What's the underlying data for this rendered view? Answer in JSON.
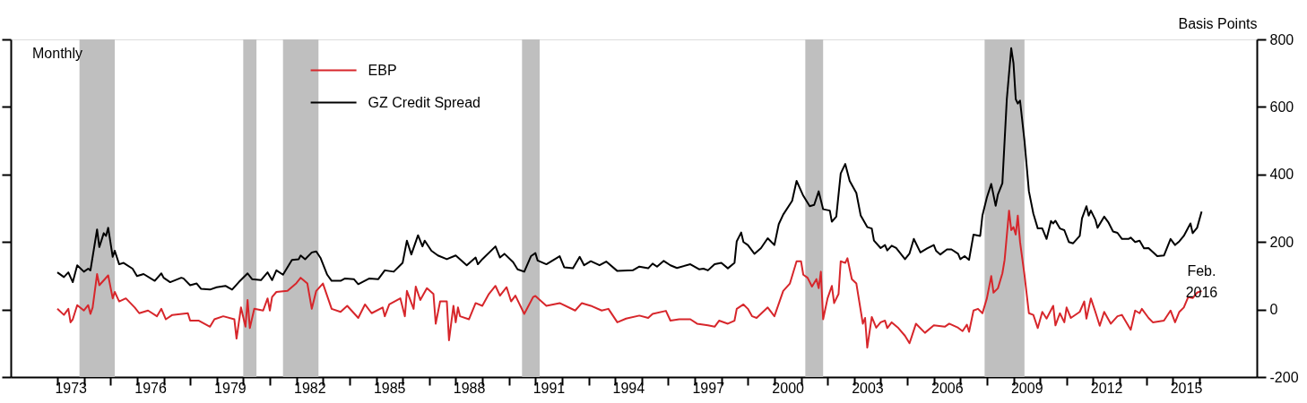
{
  "chart_data": {
    "type": "line",
    "ylabel": "Basis Points",
    "ylim": [
      -200,
      800
    ],
    "yticks": [
      -200,
      0,
      200,
      400,
      600,
      800
    ],
    "xlim": [
      "1971-04",
      "2018-03"
    ],
    "xticks": [
      {
        "value": "1973",
        "label": null
      },
      {
        "value": "1974",
        "label": null
      },
      {
        "value": "1975",
        "label": null
      },
      {
        "value": "1976",
        "label": null
      },
      {
        "value": "1977",
        "label": null
      },
      {
        "value": "1978",
        "label": null
      },
      {
        "value": "1979",
        "label": null
      },
      {
        "value": "1980",
        "label": null
      },
      {
        "value": "1981",
        "label": null
      },
      {
        "value": "1982",
        "label": null
      },
      {
        "value": "1983",
        "label": null
      },
      {
        "value": "1984",
        "label": null
      },
      {
        "value": "1985",
        "label": null
      },
      {
        "value": "1986",
        "label": null
      },
      {
        "value": "1987",
        "label": null
      },
      {
        "value": "1988",
        "label": null
      },
      {
        "value": "1989",
        "label": null
      },
      {
        "value": "1990",
        "label": null
      },
      {
        "value": "1991",
        "label": null
      },
      {
        "value": "1992",
        "label": null
      },
      {
        "value": "1993",
        "label": null
      },
      {
        "value": "1994",
        "label": null
      },
      {
        "value": "1995",
        "label": null
      },
      {
        "value": "1996",
        "label": null
      },
      {
        "value": "1997",
        "label": null
      },
      {
        "value": "1998",
        "label": null
      },
      {
        "value": "1999",
        "label": null
      },
      {
        "value": "2000",
        "label": null
      },
      {
        "value": "2001",
        "label": null
      },
      {
        "value": "2002",
        "label": null
      },
      {
        "value": "2003",
        "label": null
      },
      {
        "value": "2004",
        "label": null
      },
      {
        "value": "2005",
        "label": null
      },
      {
        "value": "2006",
        "label": null
      },
      {
        "value": "2007",
        "label": null
      },
      {
        "value": "2008",
        "label": null
      },
      {
        "value": "2009",
        "label": null
      },
      {
        "value": "2010",
        "label": null
      },
      {
        "value": "2011",
        "label": null
      },
      {
        "value": "2012",
        "label": null
      },
      {
        "value": "2013",
        "label": null
      },
      {
        "value": "2014",
        "label": null
      },
      {
        "value": "2015",
        "label": null
      },
      {
        "value": "2016",
        "label": null
      },
      {
        "value": "1973-07",
        "label": "1973"
      },
      {
        "value": "1976-07",
        "label": "1976"
      },
      {
        "value": "1979-07",
        "label": "1979"
      },
      {
        "value": "1982-07",
        "label": "1982"
      },
      {
        "value": "1985-07",
        "label": "1985"
      },
      {
        "value": "1988-07",
        "label": "1988"
      },
      {
        "value": "1991-07",
        "label": "1991"
      },
      {
        "value": "1994-07",
        "label": "1994"
      },
      {
        "value": "1997-07",
        "label": "1997"
      },
      {
        "value": "2000-07",
        "label": "2000"
      },
      {
        "value": "2003-07",
        "label": "2003"
      },
      {
        "value": "2006-07",
        "label": "2006"
      },
      {
        "value": "2009-07",
        "label": "2009"
      },
      {
        "value": "2012-07",
        "label": "2012"
      },
      {
        "value": "2015-07",
        "label": "2015"
      }
    ],
    "grid": false,
    "legend": "top left",
    "bands": [
      {
        "axis": "x",
        "from": "1973-11",
        "to": "1975-03",
        "color": "#bfbfbf"
      },
      {
        "axis": "x",
        "from": "1980-01",
        "to": "1980-07",
        "color": "#bfbfbf"
      },
      {
        "axis": "x",
        "from": "1981-07",
        "to": "1982-11",
        "color": "#bfbfbf"
      },
      {
        "axis": "x",
        "from": "1990-07",
        "to": "1991-03",
        "color": "#bfbfbf"
      },
      {
        "axis": "x",
        "from": "2001-03",
        "to": "2001-11",
        "color": "#bfbfbf"
      },
      {
        "axis": "x",
        "from": "2007-12",
        "to": "2009-06",
        "color": "#bfbfbf"
      }
    ],
    "annotations": [
      "Monthly",
      {
        "text": "Feb. 2016",
        "x": "2016-02",
        "y": 55
      }
    ],
    "series": [
      {
        "name": "EBP",
        "color": "#d7262b",
        "x": [
          "1973-01",
          "1973-04",
          "1973-06",
          "1973-07",
          "1973-08",
          "1973-10",
          "1974-01",
          "1974-03",
          "1974-04",
          "1974-05",
          "1974-07",
          "1974-08",
          "1974-12",
          "1975-02",
          "1975-03",
          "1975-05",
          "1975-08",
          "1975-12",
          "1976-02",
          "1976-06",
          "1976-10",
          "1976-12",
          "1977-02",
          "1977-05",
          "1977-12",
          "1978-01",
          "1978-05",
          "1978-10",
          "1978-12",
          "1979-04",
          "1979-09",
          "1979-10",
          "1979-12",
          "1980-02",
          "1980-03",
          "1980-04",
          "1980-06",
          "1980-10",
          "1980-12",
          "1981-01",
          "1981-02",
          "1981-04",
          "1981-09",
          "1982-01",
          "1982-03",
          "1982-06",
          "1982-08",
          "1982-10",
          "1983-01",
          "1983-05",
          "1983-09",
          "1983-12",
          "1984-05",
          "1984-08",
          "1984-11",
          "1985-04",
          "1985-05",
          "1985-07",
          "1985-12",
          "1986-02",
          "1986-03",
          "1986-06",
          "1986-07",
          "1986-09",
          "1986-12",
          "1987-03",
          "1987-04",
          "1987-06",
          "1987-09",
          "1987-10",
          "1987-12",
          "1988-01",
          "1988-02",
          "1988-03",
          "1988-07",
          "1988-10",
          "1989-01",
          "1989-04",
          "1989-07",
          "1989-09",
          "1989-12",
          "1990-02",
          "1990-04",
          "1990-08",
          "1990-12",
          "1991-01",
          "1991-06",
          "1991-12",
          "1992-07",
          "1992-10",
          "1993-02",
          "1993-07",
          "1993-10",
          "1994-02",
          "1994-06",
          "1994-12",
          "1995-04",
          "1995-06",
          "1995-12",
          "1996-02",
          "1996-06",
          "1996-11",
          "1997-02",
          "1997-07",
          "1997-10",
          "1997-12",
          "1998-04",
          "1998-07",
          "1998-08",
          "1998-11",
          "1999-01",
          "1999-03",
          "1999-05",
          "1999-10",
          "2000-01",
          "2000-05",
          "2000-08",
          "2000-11",
          "2001-01",
          "2001-02",
          "2001-04",
          "2001-06",
          "2001-08",
          "2001-09",
          "2001-10",
          "2001-11",
          "2002-01",
          "2002-03",
          "2002-04",
          "2002-06",
          "2002-07",
          "2002-09",
          "2002-10",
          "2002-12",
          "2003-02",
          "2003-05",
          "2003-06",
          "2003-07",
          "2003-09",
          "2003-11",
          "2004-01",
          "2004-03",
          "2004-04",
          "2004-06",
          "2004-09",
          "2004-12",
          "2005-02",
          "2005-05",
          "2005-09",
          "2006-01",
          "2006-06",
          "2006-08",
          "2006-12",
          "2007-02",
          "2007-04",
          "2007-05",
          "2007-07",
          "2007-09",
          "2007-11",
          "2008-01",
          "2008-03",
          "2008-04",
          "2008-06",
          "2008-08",
          "2008-09",
          "2008-11",
          "2008-12",
          "2009-01",
          "2009-02",
          "2009-03",
          "2009-04",
          "2009-06",
          "2009-08",
          "2009-10",
          "2009-12",
          "2010-02",
          "2010-04",
          "2010-07",
          "2010-08",
          "2010-10",
          "2010-12",
          "2011-01",
          "2011-03",
          "2011-07",
          "2011-09",
          "2011-10",
          "2011-12",
          "2012-02",
          "2012-04",
          "2012-06",
          "2012-09",
          "2012-12",
          "2013-02",
          "2013-06",
          "2013-08",
          "2013-10",
          "2013-11",
          "2014-02",
          "2014-04",
          "2014-09",
          "2014-12",
          "2015-02",
          "2015-04",
          "2015-06",
          "2015-08",
          "2015-10",
          "2015-12",
          "2016-02"
        ],
        "values": [
          2,
          -16,
          2,
          -38,
          -29,
          13,
          -3,
          13,
          -13,
          6,
          105,
          72,
          101,
          33,
          52,
          24,
          33,
          6,
          -11,
          -3,
          -20,
          2,
          -29,
          -16,
          -11,
          -33,
          -33,
          -51,
          -29,
          -20,
          -29,
          -86,
          6,
          -51,
          28,
          -55,
          2,
          -3,
          33,
          -3,
          37,
          52,
          55,
          78,
          94,
          77,
          2,
          55,
          77,
          2,
          -7,
          11,
          -25,
          15,
          -11,
          6,
          -20,
          15,
          33,
          -20,
          55,
          2,
          68,
          28,
          63,
          46,
          -42,
          24,
          24,
          -91,
          11,
          -38,
          6,
          -20,
          -29,
          19,
          11,
          46,
          70,
          41,
          66,
          24,
          41,
          -13,
          37,
          40,
          11,
          19,
          -3,
          19,
          11,
          -3,
          2,
          -38,
          -27,
          -18,
          -25,
          -13,
          -4,
          -33,
          -29,
          -29,
          -42,
          -47,
          -51,
          -33,
          -42,
          -33,
          2,
          15,
          2,
          -20,
          -25,
          6,
          -20,
          55,
          77,
          143,
          143,
          103,
          94,
          68,
          90,
          63,
          112,
          -29,
          33,
          70,
          19,
          46,
          143,
          138,
          152,
          90,
          77,
          -42,
          -25,
          -113,
          -22,
          -54,
          -38,
          -33,
          -55,
          -38,
          -55,
          -78,
          -100,
          -42,
          -69,
          -47,
          -51,
          -42,
          -54,
          -64,
          -45,
          -66,
          -3,
          2,
          -11,
          33,
          99,
          50,
          63,
          107,
          147,
          293,
          235,
          244,
          222,
          278,
          200,
          103,
          -11,
          -16,
          -55,
          -7,
          -27,
          11,
          -47,
          -11,
          -38,
          6,
          -25,
          -7,
          24,
          -27,
          33,
          -7,
          -48,
          -7,
          -42,
          -20,
          -16,
          -60,
          -3,
          -11,
          2,
          -25,
          -38,
          -33,
          -3,
          -38,
          -7,
          6,
          37,
          34,
          50,
          55
        ]
      },
      {
        "name": "GZ Credit Spread",
        "color": "#000000",
        "x": [
          "1973-01",
          "1973-04",
          "1973-06",
          "1973-08",
          "1973-10",
          "1974-01",
          "1974-03",
          "1974-04",
          "1974-07",
          "1974-08",
          "1974-10",
          "1974-11",
          "1974-12",
          "1975-02",
          "1975-03",
          "1975-05",
          "1975-07",
          "1975-11",
          "1976-01",
          "1976-04",
          "1976-09",
          "1976-12",
          "1977-01",
          "1977-04",
          "1977-09",
          "1977-10",
          "1978-01",
          "1978-04",
          "1978-06",
          "1978-10",
          "1979-01",
          "1979-05",
          "1979-08",
          "1979-11",
          "1980-03",
          "1980-05",
          "1980-09",
          "1980-12",
          "1981-02",
          "1981-04",
          "1981-07",
          "1981-11",
          "1982-02",
          "1982-03",
          "1982-05",
          "1982-08",
          "1982-10",
          "1982-12",
          "1983-03",
          "1983-05",
          "1983-09",
          "1983-11",
          "1984-03",
          "1984-05",
          "1984-10",
          "1985-02",
          "1985-05",
          "1985-09",
          "1986-01",
          "1986-03",
          "1986-05",
          "1986-08",
          "1986-10",
          "1986-11",
          "1987-02",
          "1987-05",
          "1987-09",
          "1988-01",
          "1988-06",
          "1988-10",
          "1988-11",
          "1989-01",
          "1989-07",
          "1989-09",
          "1989-11",
          "1990-03",
          "1990-05",
          "1990-08",
          "1990-11",
          "1991-01",
          "1991-02",
          "1991-06",
          "1991-12",
          "1992-02",
          "1992-06",
          "1992-09",
          "1992-11",
          "1993-02",
          "1993-06",
          "1993-09",
          "1994-02",
          "1994-09",
          "1994-12",
          "1995-04",
          "1995-06",
          "1995-08",
          "1995-11",
          "1996-02",
          "1996-05",
          "1996-11",
          "1997-03",
          "1997-05",
          "1997-07",
          "1997-10",
          "1998-01",
          "1998-04",
          "1998-07",
          "1998-08",
          "1998-10",
          "1998-11",
          "1999-01",
          "1999-04",
          "1999-07",
          "1999-10",
          "2000-01",
          "2000-03",
          "2000-05",
          "2000-09",
          "2000-11",
          "2001-02",
          "2001-05",
          "2001-07",
          "2001-09",
          "2001-11",
          "2002-02",
          "2002-03",
          "2002-05",
          "2002-07",
          "2002-09",
          "2002-11",
          "2003-02",
          "2003-04",
          "2003-07",
          "2003-09",
          "2003-10",
          "2004-01",
          "2004-03",
          "2004-04",
          "2004-06",
          "2004-08",
          "2004-12",
          "2005-02",
          "2005-04",
          "2005-07",
          "2005-10",
          "2006-01",
          "2006-02",
          "2006-04",
          "2006-07",
          "2006-09",
          "2006-12",
          "2007-01",
          "2007-03",
          "2007-05",
          "2007-07",
          "2007-10",
          "2007-11",
          "2008-01",
          "2008-03",
          "2008-05",
          "2008-06",
          "2008-08",
          "2008-10",
          "2008-12",
          "2009-01",
          "2009-02",
          "2009-03",
          "2009-04",
          "2009-06",
          "2009-08",
          "2009-10",
          "2009-12",
          "2010-02",
          "2010-04",
          "2010-06",
          "2010-07",
          "2010-08",
          "2010-10",
          "2010-12",
          "2011-02",
          "2011-04",
          "2011-07",
          "2011-08",
          "2011-10",
          "2011-11",
          "2011-12",
          "2012-02",
          "2012-03",
          "2012-06",
          "2012-08",
          "2012-10",
          "2012-12",
          "2013-02",
          "2013-05",
          "2013-06",
          "2013-08",
          "2013-10",
          "2013-12",
          "2014-02",
          "2014-06",
          "2014-09",
          "2014-12",
          "2015-02",
          "2015-04",
          "2015-06",
          "2015-09",
          "2015-10",
          "2015-12",
          "2016-02"
        ],
        "values": [
          110,
          96,
          110,
          81,
          131,
          112,
          121,
          116,
          237,
          185,
          226,
          218,
          242,
          156,
          174,
          134,
          138,
          121,
          99,
          105,
          85,
          107,
          94,
          81,
          94,
          92,
          72,
          77,
          61,
          59,
          66,
          70,
          59,
          81,
          107,
          90,
          87,
          110,
          87,
          116,
          103,
          147,
          149,
          160,
          149,
          169,
          172,
          152,
          103,
          85,
          85,
          92,
          90,
          75,
          92,
          90,
          116,
          112,
          138,
          204,
          163,
          220,
          187,
          204,
          174,
          160,
          149,
          160,
          131,
          154,
          134,
          149,
          187,
          154,
          165,
          140,
          119,
          112,
          158,
          167,
          145,
          134,
          158,
          125,
          122,
          156,
          131,
          143,
          131,
          142,
          114,
          116,
          127,
          122,
          136,
          127,
          144,
          131,
          123,
          134,
          119,
          121,
          116,
          134,
          138,
          122,
          138,
          202,
          228,
          200,
          191,
          165,
          182,
          211,
          191,
          253,
          281,
          322,
          381,
          337,
          306,
          310,
          350,
          297,
          293,
          260,
          275,
          403,
          431,
          381,
          345,
          279,
          244,
          240,
          204,
          182,
          191,
          175,
          189,
          182,
          149,
          166,
          209,
          169,
          181,
          191,
          174,
          163,
          178,
          178,
          165,
          149,
          158,
          147,
          222,
          218,
          279,
          332,
          372,
          307,
          341,
          374,
          623,
          774,
          729,
          623,
          610,
          619,
          500,
          350,
          284,
          240,
          240,
          209,
          262,
          255,
          263,
          240,
          235,
          200,
          196,
          218,
          270,
          306,
          278,
          293,
          266,
          242,
          275,
          257,
          231,
          227,
          209,
          209,
          213,
          200,
          204,
          181,
          182,
          158,
          160,
          209,
          191,
          202,
          218,
          255,
          226,
          242,
          290
        ]
      }
    ]
  }
}
